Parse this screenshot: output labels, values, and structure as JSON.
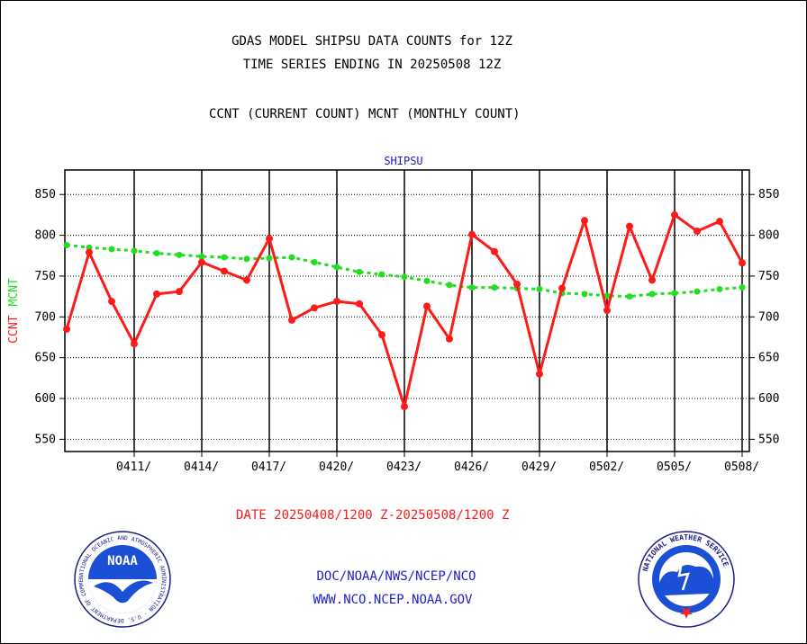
{
  "header": {
    "line1": "GDAS MODEL SHIPSU DATA COUNTS for 12Z",
    "line2": "TIME SERIES ENDING IN 20250508 12Z",
    "line3": "CCNT (CURRENT COUNT) MCNT (MONTHLY COUNT)"
  },
  "footer": {
    "date_range": "DATE 20250408/1200 Z-20250508/1200 Z",
    "credit_line1": "DOC/NOAA/NWS/NCEP/NCO",
    "credit_line2": "WWW.NCO.NCEP.NOAA.GOV"
  },
  "logos": {
    "noaa_wordmark": "NOAA",
    "noaa_ring_text": "NATIONAL OCEANIC AND ATMOSPHERIC ADMINISTRATION · U.S. DEPARTMENT OF COMMERCE",
    "nws_ring_text": "NATIONAL WEATHER SERVICE"
  },
  "chart_data": {
    "type": "line",
    "title": "SHIPSU",
    "ylabel_parts": [
      {
        "text": "CCNT",
        "color": "#ff1a1a"
      },
      {
        "text": "MCNT",
        "color": "#22dd22"
      }
    ],
    "ylim": [
      535,
      880
    ],
    "yticks": [
      550,
      600,
      650,
      700,
      750,
      800,
      850
    ],
    "x_range": [
      "2025-04-08",
      "2025-05-08"
    ],
    "xticks": [
      {
        "date": "2025-04-11",
        "label": "0411/"
      },
      {
        "date": "2025-04-14",
        "label": "0414/"
      },
      {
        "date": "2025-04-17",
        "label": "0417/"
      },
      {
        "date": "2025-04-20",
        "label": "0420/"
      },
      {
        "date": "2025-04-23",
        "label": "0423/"
      },
      {
        "date": "2025-04-26",
        "label": "0426/"
      },
      {
        "date": "2025-04-29",
        "label": "0429/"
      },
      {
        "date": "2025-05-02",
        "label": "0502/"
      },
      {
        "date": "2025-05-05",
        "label": "0505/"
      },
      {
        "date": "2025-05-08",
        "label": "0508/"
      }
    ],
    "grid": true,
    "series": [
      {
        "name": "CCNT",
        "color": "#ff1a1a",
        "style": "solid",
        "x": [
          "2025-04-08",
          "2025-04-09",
          "2025-04-10",
          "2025-04-11",
          "2025-04-12",
          "2025-04-13",
          "2025-04-14",
          "2025-04-15",
          "2025-04-16",
          "2025-04-17",
          "2025-04-18",
          "2025-04-19",
          "2025-04-20",
          "2025-04-21",
          "2025-04-22",
          "2025-04-23",
          "2025-04-24",
          "2025-04-25",
          "2025-04-26",
          "2025-04-27",
          "2025-04-28",
          "2025-04-29",
          "2025-04-30",
          "2025-05-01",
          "2025-05-02",
          "2025-05-03",
          "2025-05-04",
          "2025-05-05",
          "2025-05-06",
          "2025-05-07",
          "2025-05-08"
        ],
        "values": [
          685,
          779,
          719,
          667,
          728,
          731,
          767,
          756,
          745,
          796,
          696,
          711,
          719,
          716,
          678,
          590,
          713,
          673,
          801,
          780,
          740,
          630,
          735,
          818,
          708,
          811,
          745,
          825,
          805,
          817,
          766
        ]
      },
      {
        "name": "MCNT",
        "color": "#22dd22",
        "style": "dashed",
        "x": [
          "2025-04-08",
          "2025-04-09",
          "2025-04-10",
          "2025-04-11",
          "2025-04-12",
          "2025-04-13",
          "2025-04-14",
          "2025-04-15",
          "2025-04-16",
          "2025-04-17",
          "2025-04-18",
          "2025-04-19",
          "2025-04-20",
          "2025-04-21",
          "2025-04-22",
          "2025-04-23",
          "2025-04-24",
          "2025-04-25",
          "2025-04-26",
          "2025-04-27",
          "2025-04-28",
          "2025-04-29",
          "2025-04-30",
          "2025-05-01",
          "2025-05-02",
          "2025-05-03",
          "2025-05-04",
          "2025-05-05",
          "2025-05-06",
          "2025-05-07",
          "2025-05-08"
        ],
        "values": [
          788,
          785,
          783,
          781,
          778,
          776,
          774,
          773,
          771,
          772,
          773,
          767,
          761,
          755,
          752,
          749,
          744,
          739,
          736,
          736,
          735,
          734,
          729,
          728,
          726,
          725,
          728,
          729,
          731,
          734,
          736
        ]
      }
    ]
  }
}
